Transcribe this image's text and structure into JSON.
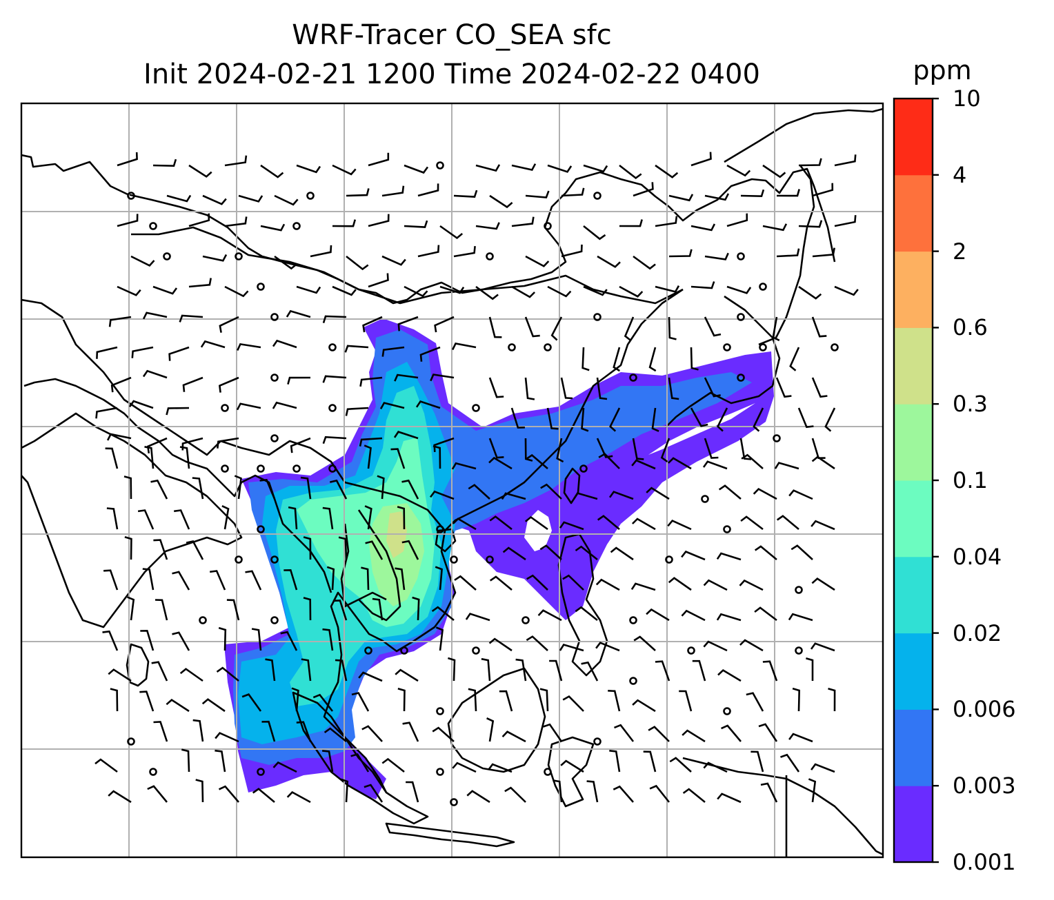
{
  "title": {
    "line1": "WRF-Tracer CO_SEA sfc",
    "line2": "Init 2024-02-21 1200 Time 2024-02-22 0400"
  },
  "colorbar": {
    "unit": "ppm",
    "ticks": [
      "0.001",
      "0.003",
      "0.006",
      "0.02",
      "0.04",
      "0.1",
      "0.3",
      "0.6",
      "2",
      "4",
      "10"
    ],
    "colors": [
      "#6a2cff",
      "#3276f4",
      "#05b2ec",
      "#30e0d4",
      "#6cfcc0",
      "#9df79c",
      "#cfe18a",
      "#fdb060",
      "#fe713c",
      "#fe2c17"
    ]
  },
  "map": {
    "coastline_color": "#000000",
    "gridline_color": "#b0b0b0",
    "wind_barb_color": "#000000"
  }
}
